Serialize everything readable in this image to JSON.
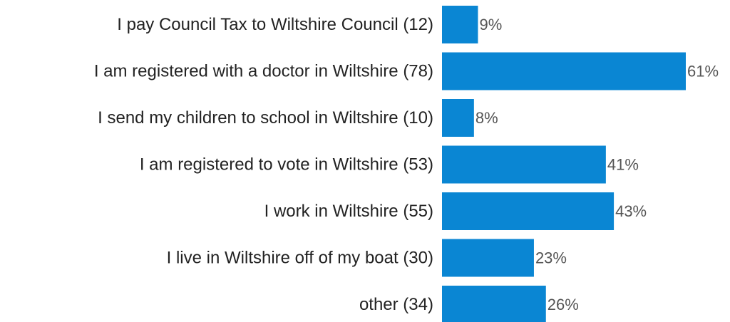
{
  "chart_data": {
    "type": "bar",
    "orientation": "horizontal",
    "categories": [
      "I pay Council Tax to Wiltshire Council (12)",
      "I am registered with a doctor in Wiltshire (78)",
      "I send my children to school in Wiltshire (10)",
      "I am registered to vote in Wiltshire (53)",
      "I work in Wiltshire (55)",
      "I live in Wiltshire off of my boat (30)",
      "other (34)"
    ],
    "values": [
      9,
      61,
      8,
      41,
      43,
      23,
      26
    ],
    "value_labels": [
      "9%",
      "61%",
      "8%",
      "41%",
      "43%",
      "23%",
      "26%"
    ],
    "value_unit": "%",
    "xlim": [
      0,
      61
    ],
    "grid": false,
    "legend": "none",
    "bar_color": "#0a86d3",
    "title": "",
    "xlabel": "",
    "ylabel": ""
  }
}
